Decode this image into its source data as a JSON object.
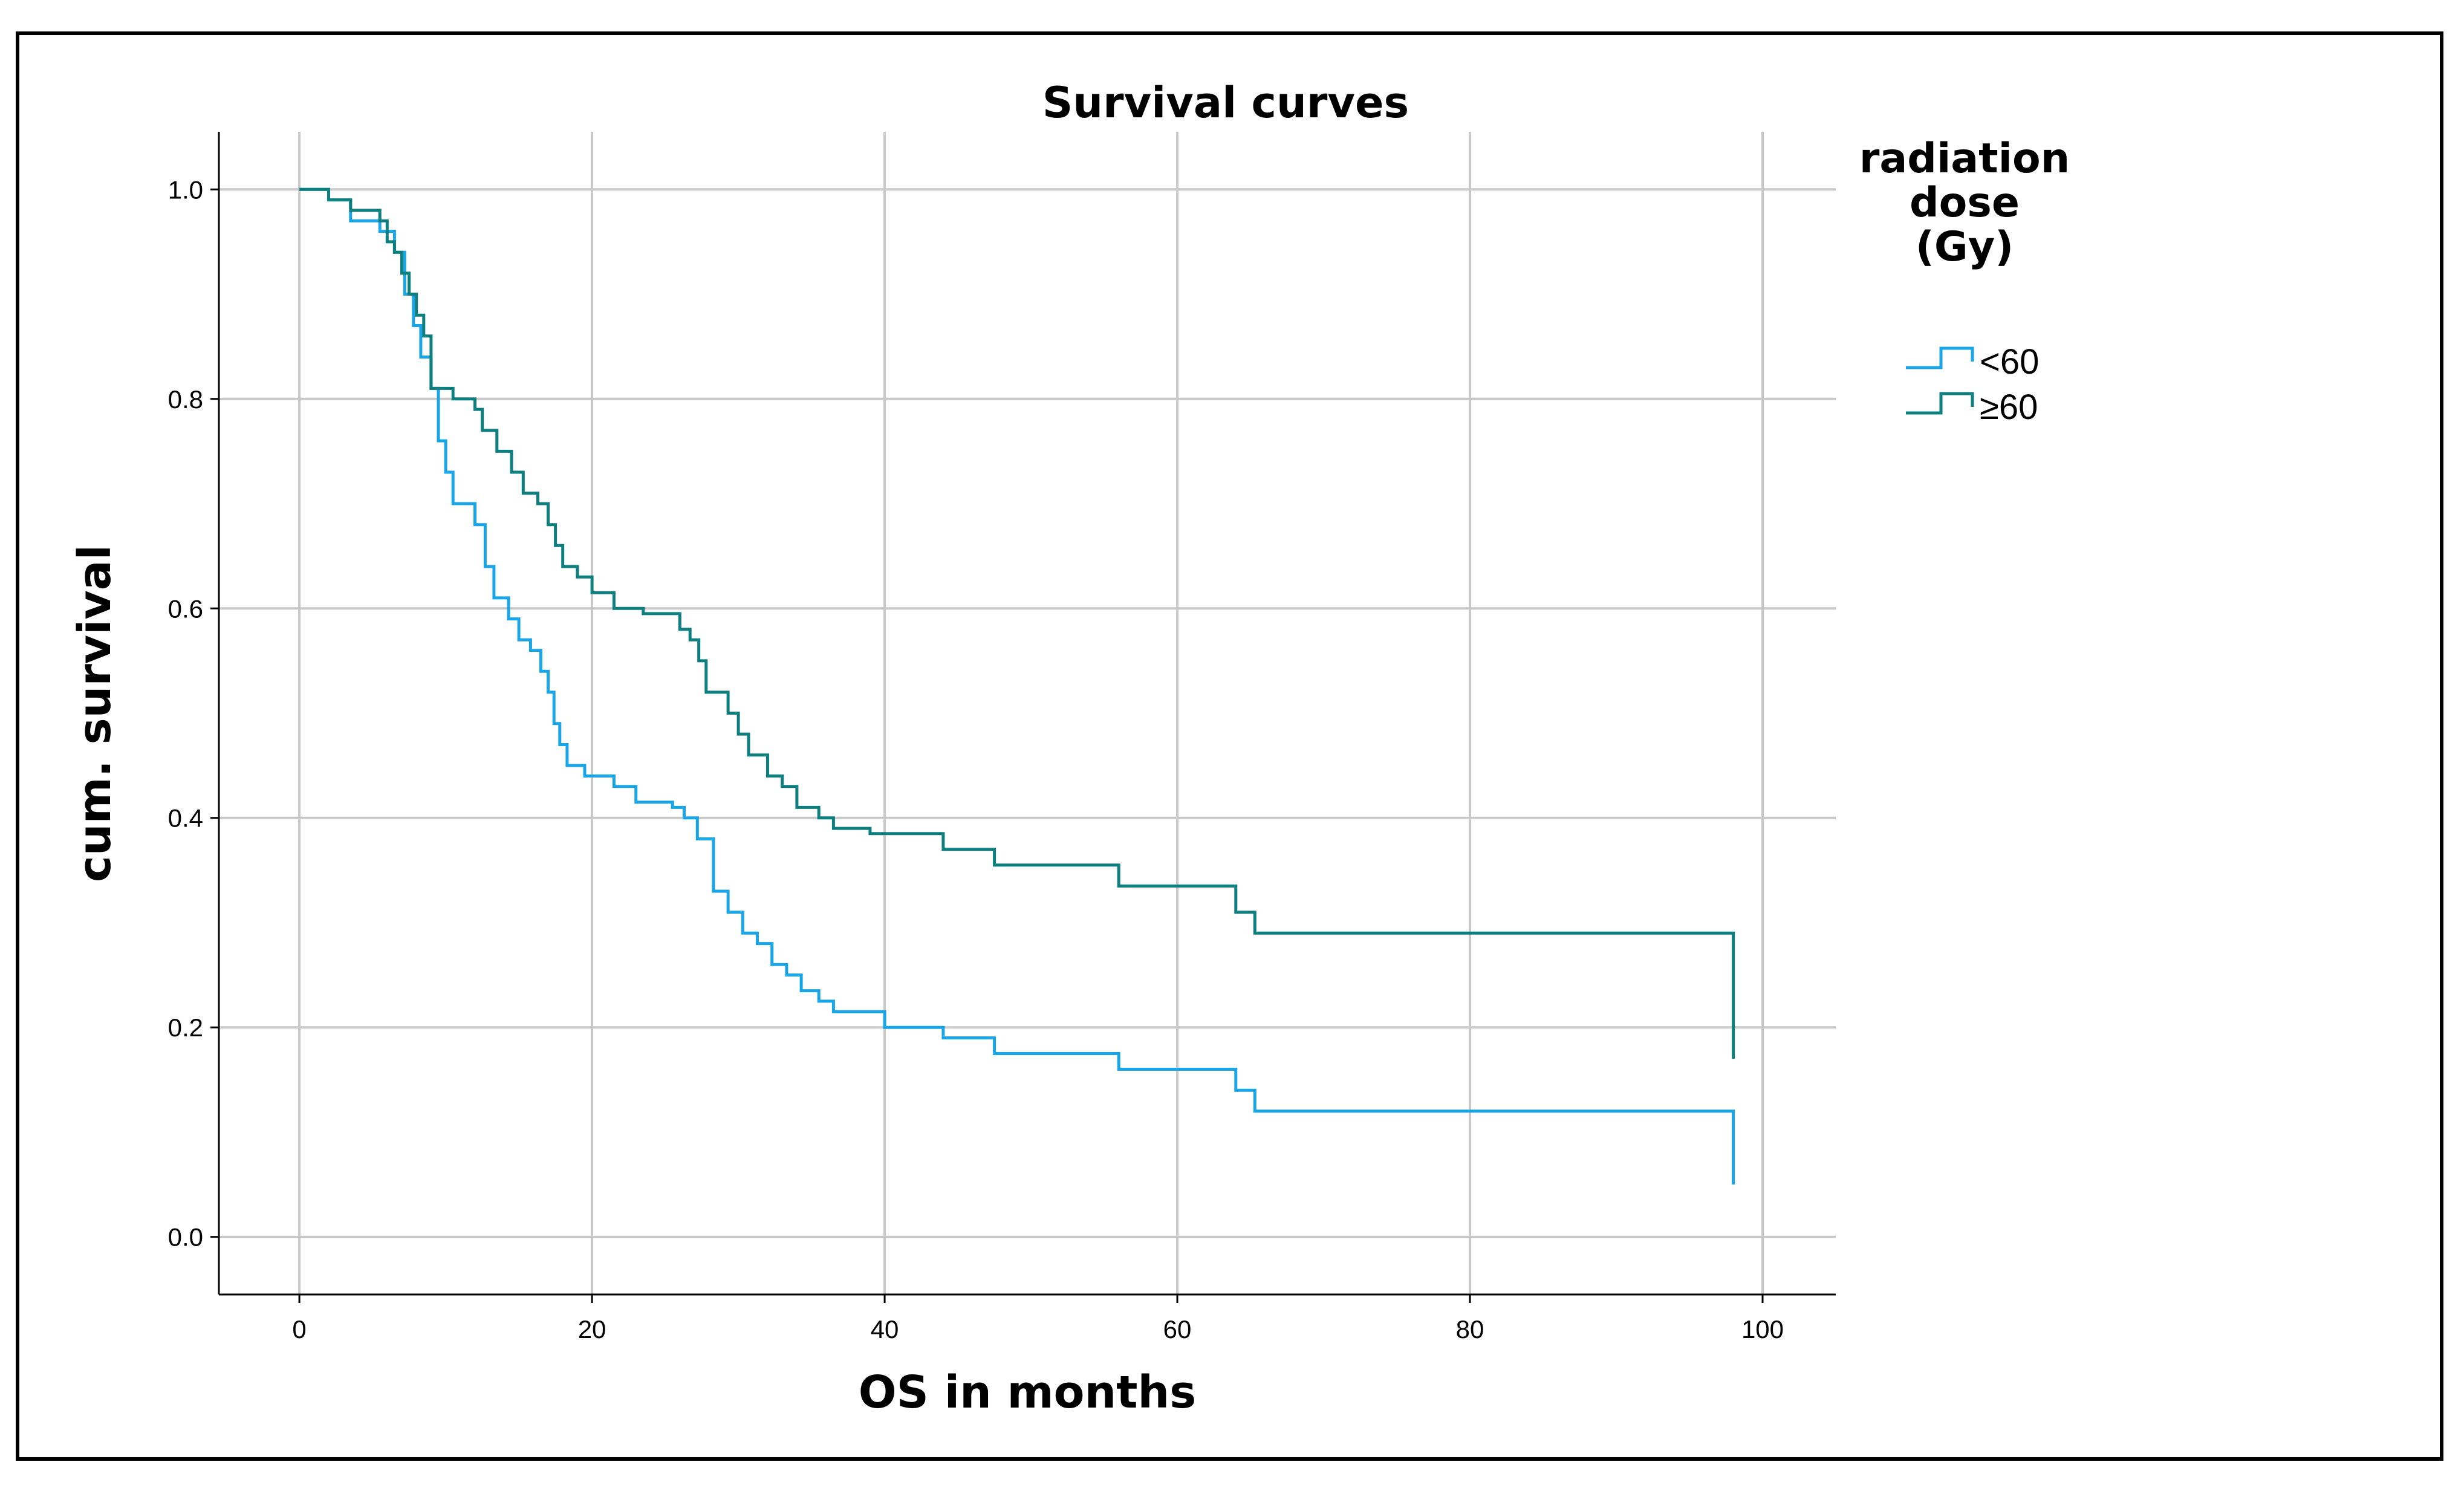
{
  "chart_data": {
    "type": "line",
    "title": "Survival curves",
    "xlabel": "OS in months",
    "ylabel": "cum. survival",
    "xlim": [
      -5.5,
      105
    ],
    "ylim": [
      -0.055,
      1.055
    ],
    "xticks": [
      0,
      20,
      40,
      60,
      80,
      100
    ],
    "yticks": [
      0.0,
      0.2,
      0.4,
      0.6,
      0.8,
      1.0
    ],
    "xtick_labels": [
      "0",
      "20",
      "40",
      "60",
      "80",
      "100"
    ],
    "ytick_labels": [
      "0.0",
      "0.2",
      "0.4",
      "0.6",
      "0.8",
      "1.0"
    ],
    "grid": true,
    "step": "post",
    "legend": {
      "title_lines": [
        "radiation",
        "dose",
        "(Gy)"
      ],
      "placement": "right"
    },
    "series": [
      {
        "name": "<60",
        "color": "#1aa6e6",
        "x": [
          0,
          2,
          3.5,
          5.5,
          6.5,
          7.2,
          7.8,
          8.3,
          9.0,
          9.5,
          10.0,
          10.5,
          12.0,
          12.7,
          13.3,
          14.3,
          15.0,
          15.8,
          16.5,
          17.0,
          17.4,
          17.8,
          18.3,
          19.5,
          21.5,
          23.0,
          25.5,
          26.3,
          27.2,
          28.3,
          29.3,
          30.3,
          31.3,
          32.3,
          33.3,
          34.3,
          35.5,
          36.5,
          40.0,
          44.0,
          47.5,
          56.0,
          64.0,
          65.3,
          98.0
        ],
        "y": [
          1.0,
          0.99,
          0.97,
          0.96,
          0.94,
          0.9,
          0.87,
          0.84,
          0.81,
          0.76,
          0.73,
          0.7,
          0.68,
          0.64,
          0.61,
          0.59,
          0.57,
          0.56,
          0.54,
          0.52,
          0.49,
          0.47,
          0.45,
          0.44,
          0.43,
          0.415,
          0.41,
          0.4,
          0.38,
          0.33,
          0.31,
          0.29,
          0.28,
          0.26,
          0.25,
          0.235,
          0.225,
          0.215,
          0.2,
          0.19,
          0.175,
          0.16,
          0.14,
          0.12,
          0.05
        ]
      },
      {
        "name": "≥60",
        "color": "#0e7f7f",
        "x": [
          0,
          2,
          3.5,
          5.5,
          6.0,
          6.5,
          7.0,
          7.5,
          8.0,
          8.5,
          9.0,
          10.5,
          12.0,
          12.5,
          13.5,
          14.5,
          15.3,
          16.3,
          17.0,
          17.5,
          18.0,
          19.0,
          20.0,
          21.5,
          23.5,
          26.0,
          26.7,
          27.3,
          27.8,
          29.3,
          30.0,
          30.7,
          32.0,
          33.0,
          34.0,
          35.5,
          36.5,
          39.0,
          44.0,
          47.5,
          56.0,
          64.0,
          65.3,
          98.0
        ],
        "y": [
          1.0,
          0.99,
          0.98,
          0.97,
          0.95,
          0.94,
          0.92,
          0.9,
          0.88,
          0.86,
          0.81,
          0.8,
          0.79,
          0.77,
          0.75,
          0.73,
          0.71,
          0.7,
          0.68,
          0.66,
          0.64,
          0.63,
          0.615,
          0.6,
          0.595,
          0.58,
          0.57,
          0.55,
          0.52,
          0.5,
          0.48,
          0.46,
          0.44,
          0.43,
          0.41,
          0.4,
          0.39,
          0.385,
          0.37,
          0.355,
          0.335,
          0.31,
          0.29,
          0.17
        ]
      }
    ]
  }
}
